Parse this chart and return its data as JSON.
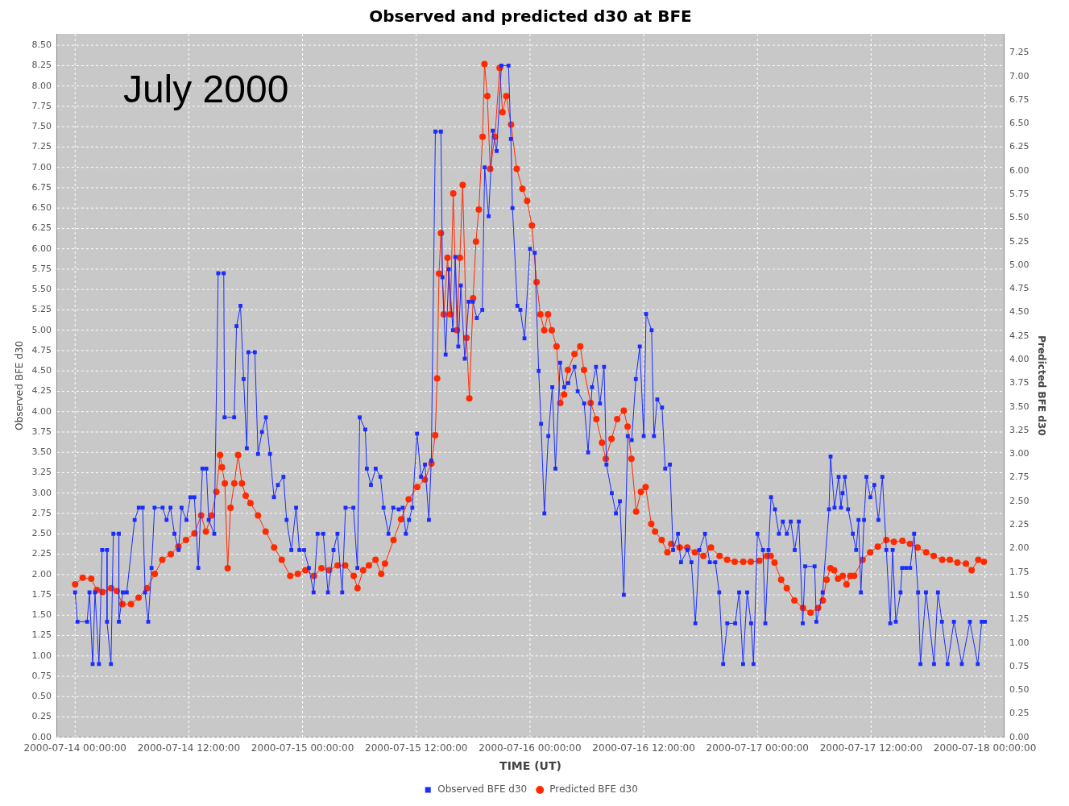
{
  "chart_data": {
    "type": "line",
    "title": "Observed and predicted d30 at BFE",
    "xlabel": "TIME (UT)",
    "ylabel": "Observed BFE d30",
    "y2label": "Predicted BFE d30",
    "annotations": [
      "July 2000"
    ],
    "legend": "bottom",
    "grid": true,
    "xlim": [
      "2000-07-13T22:06",
      "2000-07-18T02:00"
    ],
    "xticks": [
      {
        "value": "2000-07-14T00:00",
        "label": "2000-07-14 00:00:00"
      },
      {
        "value": "2000-07-14T12:00",
        "label": "2000-07-14 12:00:00"
      },
      {
        "value": "2000-07-15T00:00",
        "label": "2000-07-15 00:00:00"
      },
      {
        "value": "2000-07-15T12:00",
        "label": "2000-07-15 12:00:00"
      },
      {
        "value": "2000-07-16T00:00",
        "label": "2000-07-16 00:00:00"
      },
      {
        "value": "2000-07-16T12:00",
        "label": "2000-07-16 12:00:00"
      },
      {
        "value": "2000-07-17T00:00",
        "label": "2000-07-17 00:00:00"
      },
      {
        "value": "2000-07-17T12:00",
        "label": "2000-07-17 12:00:00"
      },
      {
        "value": "2000-07-18T00:00",
        "label": "2000-07-18 00:00:00"
      }
    ],
    "ylim": [
      0,
      8.64
    ],
    "yticks": [
      {
        "value": 0,
        "label": "0.00"
      },
      {
        "value": 0.25,
        "label": "0.25"
      },
      {
        "value": 0.5,
        "label": "0.50"
      },
      {
        "value": 0.75,
        "label": "0.75"
      },
      {
        "value": 1,
        "label": "1.00"
      },
      {
        "value": 1.25,
        "label": "1.25"
      },
      {
        "value": 1.5,
        "label": "1.50"
      },
      {
        "value": 1.75,
        "label": "1.75"
      },
      {
        "value": 2,
        "label": "2.00"
      },
      {
        "value": 2.25,
        "label": "2.25"
      },
      {
        "value": 2.5,
        "label": "2.50"
      },
      {
        "value": 2.75,
        "label": "2.75"
      },
      {
        "value": 3,
        "label": "3.00"
      },
      {
        "value": 3.25,
        "label": "3.25"
      },
      {
        "value": 3.5,
        "label": "3.50"
      },
      {
        "value": 3.75,
        "label": "3.75"
      },
      {
        "value": 4,
        "label": "4.00"
      },
      {
        "value": 4.25,
        "label": "4.25"
      },
      {
        "value": 4.5,
        "label": "4.50"
      },
      {
        "value": 4.75,
        "label": "4.75"
      },
      {
        "value": 5,
        "label": "5.00"
      },
      {
        "value": 5.25,
        "label": "5.25"
      },
      {
        "value": 5.5,
        "label": "5.50"
      },
      {
        "value": 5.75,
        "label": "5.75"
      },
      {
        "value": 6,
        "label": "6.00"
      },
      {
        "value": 6.25,
        "label": "6.25"
      },
      {
        "value": 6.5,
        "label": "6.50"
      },
      {
        "value": 6.75,
        "label": "6.75"
      },
      {
        "value": 7,
        "label": "7.00"
      },
      {
        "value": 7.25,
        "label": "7.25"
      },
      {
        "value": 7.5,
        "label": "7.50"
      },
      {
        "value": 7.75,
        "label": "7.75"
      },
      {
        "value": 8,
        "label": "8.00"
      },
      {
        "value": 8.25,
        "label": "8.25"
      },
      {
        "value": 8.5,
        "label": "8.50"
      }
    ],
    "y2lim": [
      0,
      7.45
    ],
    "y2ticks": [
      {
        "value": 0,
        "label": "0.00"
      },
      {
        "value": 0.25,
        "label": "0.25"
      },
      {
        "value": 0.5,
        "label": "0.50"
      },
      {
        "value": 0.75,
        "label": "0.75"
      },
      {
        "value": 1,
        "label": "1.00"
      },
      {
        "value": 1.25,
        "label": "1.25"
      },
      {
        "value": 1.5,
        "label": "1.50"
      },
      {
        "value": 1.75,
        "label": "1.75"
      },
      {
        "value": 2,
        "label": "2.00"
      },
      {
        "value": 2.25,
        "label": "2.25"
      },
      {
        "value": 2.5,
        "label": "2.50"
      },
      {
        "value": 2.75,
        "label": "2.75"
      },
      {
        "value": 3,
        "label": "3.00"
      },
      {
        "value": 3.25,
        "label": "3.25"
      },
      {
        "value": 3.5,
        "label": "3.50"
      },
      {
        "value": 3.75,
        "label": "3.75"
      },
      {
        "value": 4,
        "label": "4.00"
      },
      {
        "value": 4.25,
        "label": "4.25"
      },
      {
        "value": 4.5,
        "label": "4.50"
      },
      {
        "value": 4.75,
        "label": "4.75"
      },
      {
        "value": 5,
        "label": "5.00"
      },
      {
        "value": 5.25,
        "label": "5.25"
      },
      {
        "value": 5.5,
        "label": "5.50"
      },
      {
        "value": 5.75,
        "label": "5.75"
      },
      {
        "value": 6,
        "label": "6.00"
      },
      {
        "value": 6.25,
        "label": "6.25"
      },
      {
        "value": 6.5,
        "label": "6.50"
      },
      {
        "value": 6.75,
        "label": "6.75"
      },
      {
        "value": 7,
        "label": "7.00"
      },
      {
        "value": 7.25,
        "label": "7.25"
      }
    ],
    "series": [
      {
        "name": "Observed BFE d30",
        "color": "#1a2cff",
        "axis": "y",
        "marker": "square",
        "x": [
          "2000-07-14T00:00",
          "2000-07-14T00:15",
          "2000-07-14T01:16",
          "2000-07-14T01:31",
          "2000-07-14T01:51",
          "2000-07-14T02:06",
          "2000-07-14T02:31",
          "2000-07-14T02:51",
          "2000-07-14T03:22",
          "2000-07-14T03:22",
          "2000-07-14T03:47",
          "2000-07-14T04:02",
          "2000-07-14T04:37",
          "2000-07-14T04:37",
          "2000-07-14T05:02",
          "2000-07-14T05:27",
          "2000-07-14T06:17",
          "2000-07-14T06:43",
          "2000-07-14T07:08",
          "2000-07-14T07:23",
          "2000-07-14T07:43",
          "2000-07-14T08:04",
          "2000-07-14T08:23",
          "2000-07-14T09:14",
          "2000-07-14T09:39",
          "2000-07-14T10:04",
          "2000-07-14T10:29",
          "2000-07-14T10:55",
          "2000-07-14T11:14",
          "2000-07-14T11:45",
          "2000-07-14T12:10",
          "2000-07-14T12:35",
          "2000-07-14T13:00",
          "2000-07-14T13:26",
          "2000-07-14T13:51",
          "2000-07-14T14:06",
          "2000-07-14T14:41",
          "2000-07-14T15:06",
          "2000-07-14T15:41",
          "2000-07-14T15:46",
          "2000-07-14T16:47",
          "2000-07-14T17:02",
          "2000-07-14T17:27",
          "2000-07-14T17:47",
          "2000-07-14T18:07",
          "2000-07-14T18:17",
          "2000-07-14T18:58",
          "2000-07-14T19:18",
          "2000-07-14T19:43",
          "2000-07-14T20:08",
          "2000-07-14T20:34",
          "2000-07-14T20:59",
          "2000-07-14T21:24",
          "2000-07-14T21:59",
          "2000-07-14T22:19",
          "2000-07-14T22:49",
          "2000-07-14T23:19",
          "2000-07-14T23:40",
          "2000-07-15T00:10",
          "2000-07-15T00:40",
          "2000-07-15T01:10",
          "2000-07-15T01:35",
          "2000-07-15T02:11",
          "2000-07-15T02:41",
          "2000-07-15T03:16",
          "2000-07-15T03:41",
          "2000-07-15T04:11",
          "2000-07-15T04:32",
          "2000-07-15T05:22",
          "2000-07-15T05:47",
          "2000-07-15T06:02",
          "2000-07-15T06:37",
          "2000-07-15T06:47",
          "2000-07-15T07:13",
          "2000-07-15T07:43",
          "2000-07-15T08:13",
          "2000-07-15T08:33",
          "2000-07-15T09:04",
          "2000-07-15T09:34",
          "2000-07-15T10:09",
          "2000-07-15T10:34",
          "2000-07-15T10:54",
          "2000-07-15T11:14",
          "2000-07-15T11:35",
          "2000-07-15T12:05",
          "2000-07-15T12:30",
          "2000-07-15T12:55",
          "2000-07-15T13:20",
          "2000-07-15T13:35",
          "2000-07-15T14:01",
          "2000-07-15T14:36",
          "2000-07-15T14:46",
          "2000-07-15T15:06",
          "2000-07-15T15:26",
          "2000-07-15T15:52",
          "2000-07-15T16:07",
          "2000-07-15T16:26",
          "2000-07-15T16:42",
          "2000-07-15T17:07",
          "2000-07-15T17:32",
          "2000-07-15T17:58",
          "2000-07-15T18:23",
          "2000-07-15T18:58",
          "2000-07-15T19:13",
          "2000-07-15T19:38",
          "2000-07-15T20:04",
          "2000-07-15T20:29",
          "2000-07-15T20:59",
          "2000-07-15T21:44",
          "2000-07-15T21:59",
          "2000-07-15T22:09",
          "2000-07-15T22:40",
          "2000-07-15T22:59",
          "2000-07-15T23:25",
          "2000-07-16T00:00",
          "2000-07-16T00:30",
          "2000-07-16T00:55",
          "2000-07-16T01:10",
          "2000-07-16T01:31",
          "2000-07-16T01:56",
          "2000-07-16T02:21",
          "2000-07-16T02:41",
          "2000-07-16T03:11",
          "2000-07-16T03:37",
          "2000-07-16T04:02",
          "2000-07-16T04:42",
          "2000-07-16T05:02",
          "2000-07-16T05:43",
          "2000-07-16T06:08",
          "2000-07-16T06:33",
          "2000-07-16T06:58",
          "2000-07-16T07:23",
          "2000-07-16T07:49",
          "2000-07-16T08:04",
          "2000-07-16T08:38",
          "2000-07-16T09:04",
          "2000-07-16T09:29",
          "2000-07-16T09:54",
          "2000-07-16T10:19",
          "2000-07-16T10:44",
          "2000-07-16T11:10",
          "2000-07-16T11:35",
          "2000-07-16T12:00",
          "2000-07-16T12:15",
          "2000-07-16T12:50",
          "2000-07-16T13:05",
          "2000-07-16T13:26",
          "2000-07-16T13:56",
          "2000-07-16T14:16",
          "2000-07-16T14:46",
          "2000-07-16T15:06",
          "2000-07-16T15:37",
          "2000-07-16T15:56",
          "2000-07-16T16:37",
          "2000-07-16T17:02",
          "2000-07-16T17:27",
          "2000-07-16T17:52",
          "2000-07-16T18:28",
          "2000-07-16T18:58",
          "2000-07-16T19:33",
          "2000-07-16T19:58",
          "2000-07-16T20:23",
          "2000-07-16T20:49",
          "2000-07-16T21:39",
          "2000-07-16T22:04",
          "2000-07-16T22:29",
          "2000-07-16T22:55",
          "2000-07-16T23:20",
          "2000-07-16T23:35",
          "2000-07-17T00:00",
          "2000-07-17T00:35",
          "2000-07-17T00:50",
          "2000-07-17T01:10",
          "2000-07-17T01:26",
          "2000-07-17T01:51",
          "2000-07-17T02:16",
          "2000-07-17T02:41",
          "2000-07-17T03:06",
          "2000-07-17T03:31",
          "2000-07-17T03:56",
          "2000-07-17T04:22",
          "2000-07-17T04:47",
          "2000-07-17T05:02",
          "2000-07-17T06:02",
          "2000-07-17T06:13",
          "2000-07-17T06:53",
          "2000-07-17T07:33",
          "2000-07-17T07:43",
          "2000-07-17T08:08",
          "2000-07-17T08:34",
          "2000-07-17T08:49",
          "2000-07-17T08:59",
          "2000-07-17T09:14",
          "2000-07-17T09:34",
          "2000-07-17T10:04",
          "2000-07-17T10:25",
          "2000-07-17T10:40",
          "2000-07-17T10:55",
          "2000-07-17T11:15",
          "2000-07-17T11:30",
          "2000-07-17T11:55",
          "2000-07-17T12:20",
          "2000-07-17T12:46",
          "2000-07-17T13:11",
          "2000-07-17T13:36",
          "2000-07-17T14:01",
          "2000-07-17T14:16",
          "2000-07-17T14:36",
          "2000-07-17T15:06",
          "2000-07-17T15:16",
          "2000-07-17T15:41",
          "2000-07-17T16:07",
          "2000-07-17T16:32",
          "2000-07-17T16:57",
          "2000-07-17T17:12",
          "2000-07-17T17:47",
          "2000-07-17T18:38",
          "2000-07-17T19:03",
          "2000-07-17T19:28",
          "2000-07-17T20:04",
          "2000-07-17T20:44",
          "2000-07-17T21:34",
          "2000-07-17T22:25",
          "2000-07-17T23:15",
          "2000-07-17T23:40",
          "2000-07-18T00:00"
        ],
        "values": [
          1.78,
          1.42,
          1.42,
          1.78,
          0.9,
          1.78,
          0.9,
          2.3,
          2.3,
          1.42,
          0.9,
          2.5,
          2.5,
          1.42,
          1.78,
          1.78,
          2.67,
          2.82,
          2.82,
          1.78,
          1.42,
          2.08,
          2.82,
          2.82,
          2.67,
          2.82,
          2.5,
          2.3,
          2.82,
          2.67,
          2.95,
          2.95,
          2.08,
          3.3,
          3.3,
          2.67,
          2.5,
          5.7,
          5.7,
          3.93,
          3.93,
          5.05,
          5.3,
          4.4,
          3.55,
          4.73,
          4.73,
          3.48,
          3.75,
          3.93,
          3.48,
          2.95,
          3.1,
          3.2,
          2.67,
          2.3,
          2.82,
          2.3,
          2.3,
          2.08,
          1.78,
          2.5,
          2.5,
          1.78,
          2.3,
          2.5,
          1.78,
          2.82,
          2.82,
          2.08,
          3.93,
          3.78,
          3.3,
          3.1,
          3.3,
          3.2,
          2.82,
          2.5,
          2.82,
          2.8,
          2.82,
          2.5,
          2.67,
          2.82,
          3.73,
          3.2,
          3.35,
          2.67,
          3.4,
          7.44,
          7.44,
          5.65,
          4.7,
          5.75,
          5.0,
          5.9,
          4.8,
          5.55,
          4.65,
          5.35,
          5.35,
          5.15,
          5.25,
          7.0,
          6.4,
          7.45,
          7.2,
          8.25,
          8.25,
          7.35,
          6.5,
          5.3,
          5.25,
          4.9,
          6.0,
          5.95,
          4.5,
          3.85,
          2.75,
          3.7,
          4.3,
          3.3,
          4.6,
          4.3,
          4.35,
          4.55,
          4.25,
          4.1,
          3.5,
          4.3,
          4.55,
          4.1,
          4.55,
          3.35,
          3.0,
          2.75,
          2.9,
          1.75,
          3.7,
          3.65,
          4.4,
          4.8,
          3.7,
          5.2,
          5.0,
          3.7,
          4.15,
          4.05,
          3.3,
          3.35,
          2.3,
          2.5,
          2.15,
          2.3,
          2.15,
          1.4,
          2.3,
          2.5,
          2.15,
          2.15,
          1.78,
          0.9,
          1.4,
          1.4,
          1.78,
          0.9,
          1.78,
          1.4,
          0.9,
          2.5,
          2.3,
          1.4,
          2.3,
          2.95,
          2.8,
          2.5,
          2.65,
          2.5,
          2.65,
          2.3,
          2.65,
          1.4,
          2.1,
          2.1,
          1.42,
          1.78,
          2.8,
          3.45,
          2.82,
          3.2,
          2.82,
          3.0,
          3.2,
          2.8,
          2.5,
          2.3,
          2.67,
          1.78,
          2.67,
          3.2,
          2.95,
          3.1,
          2.67,
          3.2,
          2.3,
          1.4,
          2.3,
          1.42,
          1.78,
          2.08,
          2.08,
          2.08,
          2.5,
          1.78,
          0.9,
          1.78,
          0.9,
          1.78,
          1.42,
          0.9,
          1.42,
          0.9,
          1.42,
          0.9,
          1.42,
          1.42
        ]
      },
      {
        "name": "Predicted BFE d30",
        "color": "#ff2a00",
        "axis": "y2",
        "marker": "circle",
        "x": [
          "2000-07-14T00:00",
          "2000-07-14T00:48",
          "2000-07-14T01:42",
          "2000-07-14T02:18",
          "2000-07-14T02:54",
          "2000-07-14T03:48",
          "2000-07-14T04:24",
          "2000-07-14T05:00",
          "2000-07-14T05:54",
          "2000-07-14T06:42",
          "2000-07-14T07:36",
          "2000-07-14T08:24",
          "2000-07-14T09:12",
          "2000-07-14T10:06",
          "2000-07-14T10:54",
          "2000-07-14T11:42",
          "2000-07-14T12:36",
          "2000-07-14T13:18",
          "2000-07-14T13:48",
          "2000-07-14T14:24",
          "2000-07-14T14:54",
          "2000-07-14T15:18",
          "2000-07-14T15:30",
          "2000-07-14T15:48",
          "2000-07-14T16:06",
          "2000-07-14T16:24",
          "2000-07-14T16:48",
          "2000-07-14T17:12",
          "2000-07-14T17:36",
          "2000-07-14T18:00",
          "2000-07-14T18:30",
          "2000-07-14T19:18",
          "2000-07-14T20:06",
          "2000-07-14T21:00",
          "2000-07-14T21:48",
          "2000-07-14T22:42",
          "2000-07-14T23:30",
          "2000-07-15T00:18",
          "2000-07-15T01:12",
          "2000-07-15T02:00",
          "2000-07-15T02:48",
          "2000-07-15T03:42",
          "2000-07-15T04:30",
          "2000-07-15T05:24",
          "2000-07-15T05:48",
          "2000-07-15T06:24",
          "2000-07-15T07:00",
          "2000-07-15T07:42",
          "2000-07-15T08:18",
          "2000-07-15T08:42",
          "2000-07-15T09:36",
          "2000-07-15T10:24",
          "2000-07-15T11:12",
          "2000-07-15T12:06",
          "2000-07-15T12:54",
          "2000-07-15T13:36",
          "2000-07-15T14:00",
          "2000-07-15T14:12",
          "2000-07-15T14:24",
          "2000-07-15T14:36",
          "2000-07-15T14:54",
          "2000-07-15T15:18",
          "2000-07-15T15:36",
          "2000-07-15T15:54",
          "2000-07-15T16:18",
          "2000-07-15T16:36",
          "2000-07-15T16:54",
          "2000-07-15T17:18",
          "2000-07-15T17:36",
          "2000-07-15T18:00",
          "2000-07-15T18:18",
          "2000-07-15T18:36",
          "2000-07-15T19:00",
          "2000-07-15T19:12",
          "2000-07-15T19:30",
          "2000-07-15T19:48",
          "2000-07-15T20:18",
          "2000-07-15T20:48",
          "2000-07-15T21:06",
          "2000-07-15T21:30",
          "2000-07-15T22:00",
          "2000-07-15T22:36",
          "2000-07-15T23:12",
          "2000-07-15T23:42",
          "2000-07-16T00:12",
          "2000-07-16T00:42",
          "2000-07-16T01:06",
          "2000-07-16T01:30",
          "2000-07-16T01:54",
          "2000-07-16T02:18",
          "2000-07-16T02:48",
          "2000-07-16T03:12",
          "2000-07-16T03:36",
          "2000-07-16T04:00",
          "2000-07-16T04:42",
          "2000-07-16T05:18",
          "2000-07-16T05:42",
          "2000-07-16T06:24",
          "2000-07-16T07:00",
          "2000-07-16T07:36",
          "2000-07-16T08:00",
          "2000-07-16T08:36",
          "2000-07-16T09:12",
          "2000-07-16T09:54",
          "2000-07-16T10:18",
          "2000-07-16T10:42",
          "2000-07-16T11:12",
          "2000-07-16T11:42",
          "2000-07-16T12:12",
          "2000-07-16T12:48",
          "2000-07-16T13:12",
          "2000-07-16T13:54",
          "2000-07-16T14:30",
          "2000-07-16T14:54",
          "2000-07-16T15:48",
          "2000-07-16T16:36",
          "2000-07-16T17:24",
          "2000-07-16T18:18",
          "2000-07-16T19:06",
          "2000-07-16T20:00",
          "2000-07-16T20:48",
          "2000-07-16T21:36",
          "2000-07-16T22:30",
          "2000-07-16T23:18",
          "2000-07-17T00:12",
          "2000-07-17T01:00",
          "2000-07-17T01:24",
          "2000-07-17T01:48",
          "2000-07-17T02:30",
          "2000-07-17T03:06",
          "2000-07-17T03:54",
          "2000-07-17T04:48",
          "2000-07-17T05:36",
          "2000-07-17T06:24",
          "2000-07-17T06:54",
          "2000-07-17T07:18",
          "2000-07-17T07:42",
          "2000-07-17T08:06",
          "2000-07-17T08:30",
          "2000-07-17T09:00",
          "2000-07-17T09:24",
          "2000-07-17T09:48",
          "2000-07-17T10:12",
          "2000-07-17T11:06",
          "2000-07-17T11:54",
          "2000-07-17T12:42",
          "2000-07-17T13:36",
          "2000-07-17T14:24",
          "2000-07-17T15:18",
          "2000-07-17T16:06",
          "2000-07-17T16:54",
          "2000-07-17T17:48",
          "2000-07-17T18:36",
          "2000-07-17T19:30",
          "2000-07-17T20:18",
          "2000-07-17T21:06",
          "2000-07-17T22:00",
          "2000-07-17T22:36",
          "2000-07-17T23:18",
          "2000-07-17T23:54"
        ],
        "values": [
          1.62,
          1.69,
          1.68,
          1.56,
          1.54,
          1.58,
          1.55,
          1.41,
          1.41,
          1.48,
          1.58,
          1.73,
          1.88,
          1.94,
          2.02,
          2.09,
          2.16,
          2.35,
          2.18,
          2.35,
          2.6,
          2.99,
          2.86,
          2.69,
          1.79,
          2.43,
          2.69,
          2.99,
          2.69,
          2.56,
          2.48,
          2.35,
          2.18,
          2.01,
          1.88,
          1.71,
          1.73,
          1.77,
          1.71,
          1.79,
          1.77,
          1.82,
          1.82,
          1.71,
          1.58,
          1.77,
          1.82,
          1.88,
          1.73,
          1.84,
          2.09,
          2.31,
          2.52,
          2.65,
          2.73,
          2.9,
          3.2,
          3.8,
          4.91,
          5.34,
          4.48,
          5.08,
          4.48,
          5.76,
          4.31,
          5.08,
          5.85,
          4.23,
          3.59,
          4.65,
          5.25,
          5.59,
          6.36,
          7.13,
          6.79,
          6.02,
          6.36,
          7.09,
          6.62,
          6.79,
          6.49,
          6.02,
          5.81,
          5.68,
          5.42,
          4.82,
          4.48,
          4.31,
          4.48,
          4.31,
          4.14,
          3.54,
          3.63,
          3.89,
          4.06,
          4.14,
          3.89,
          3.54,
          3.37,
          3.12,
          2.95,
          3.16,
          3.37,
          3.46,
          3.29,
          2.95,
          2.39,
          2.6,
          2.65,
          2.26,
          2.18,
          2.09,
          1.96,
          2.05,
          2.01,
          2.01,
          1.96,
          1.92,
          2.01,
          1.92,
          1.88,
          1.86,
          1.86,
          1.86,
          1.87,
          1.92,
          1.92,
          1.85,
          1.67,
          1.58,
          1.45,
          1.37,
          1.32,
          1.37,
          1.45,
          1.67,
          1.79,
          1.77,
          1.68,
          1.71,
          1.62,
          1.71,
          1.71,
          1.88,
          1.96,
          2.02,
          2.09,
          2.07,
          2.08,
          2.05,
          2.01,
          1.96,
          1.92,
          1.88,
          1.88,
          1.85,
          1.84,
          1.77,
          1.88,
          1.86
        ]
      }
    ]
  }
}
